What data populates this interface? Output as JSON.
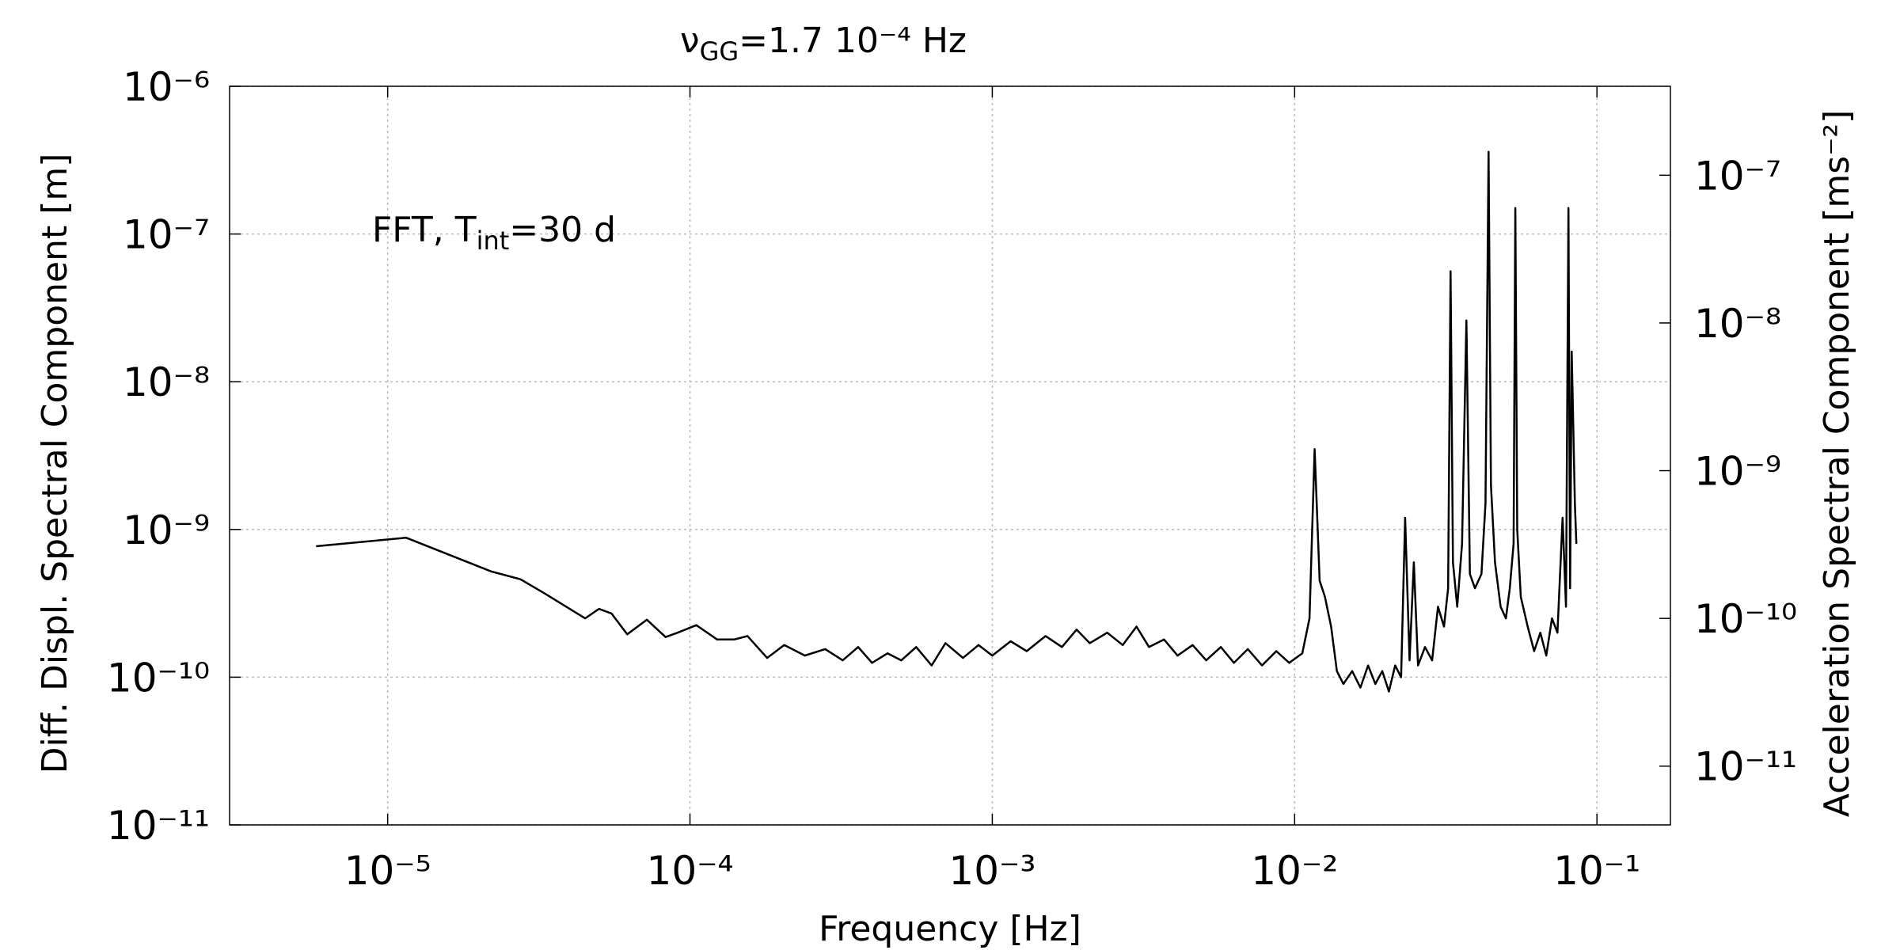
{
  "chart_data": {
    "type": "line",
    "title": [
      "ν",
      "GG",
      "=1.7 10⁻⁴ Hz"
    ],
    "annotation": [
      "FFT, T",
      "int",
      "=30 d"
    ],
    "xlabel": "Frequency [Hz]",
    "ylabel": "Diff. Displ. Spectral Component [m]",
    "y2label": "Acceleration Spectral Component [ms⁻²]",
    "xlog": true,
    "ylog": true,
    "y2log": true,
    "grid": true,
    "color": "#000000",
    "xlim": [
      3e-06,
      0.175
    ],
    "ylim": [
      1e-11,
      1e-06
    ],
    "y2lim": [
      4e-12,
      4e-07
    ],
    "xticks": [
      {
        "value": 1e-05,
        "label": "10⁻⁵"
      },
      {
        "value": 0.0001,
        "label": "10⁻⁴"
      },
      {
        "value": 0.001,
        "label": "10⁻³"
      },
      {
        "value": 0.01,
        "label": "10⁻²"
      },
      {
        "value": 0.1,
        "label": "10⁻¹"
      }
    ],
    "yticks": [
      {
        "value": 1e-11,
        "label": "10⁻¹¹"
      },
      {
        "value": 1e-10,
        "label": "10⁻¹⁰"
      },
      {
        "value": 1e-09,
        "label": "10⁻⁹"
      },
      {
        "value": 1e-08,
        "label": "10⁻⁸"
      },
      {
        "value": 1e-07,
        "label": "10⁻⁷"
      },
      {
        "value": 1e-06,
        "label": "10⁻⁶"
      }
    ],
    "y2ticks": [
      {
        "value": 1e-11,
        "label": "10⁻¹¹"
      },
      {
        "value": 1e-10,
        "label": "10⁻¹⁰"
      },
      {
        "value": 1e-09,
        "label": "10⁻⁹"
      },
      {
        "value": 1e-08,
        "label": "10⁻⁸"
      },
      {
        "value": 1e-07,
        "label": "10⁻⁷"
      }
    ],
    "x": [
      5.8e-06,
      1.15e-05,
      2.2e-05,
      2.75e-05,
      3.3e-05,
      4.5e-05,
      5e-05,
      5.5e-05,
      6.2e-05,
      7.2e-05,
      8.3e-05,
      9.1e-05,
      0.000105,
      0.000123,
      0.00014,
      0.000155,
      0.00018,
      0.000205,
      0.00024,
      0.00028,
      0.00032,
      0.00036,
      0.0004,
      0.00045,
      0.0005,
      0.00056,
      0.00063,
      0.0007,
      0.0008,
      0.0009,
      0.001,
      0.00115,
      0.0013,
      0.0015,
      0.0017,
      0.0019,
      0.0021,
      0.0024,
      0.0027,
      0.003,
      0.0033,
      0.0037,
      0.0041,
      0.0046,
      0.0051,
      0.0057,
      0.0063,
      0.007,
      0.0078,
      0.0087,
      0.0096,
      0.0106,
      0.0112,
      0.01165,
      0.0121,
      0.0126,
      0.0132,
      0.0138,
      0.0145,
      0.0155,
      0.0165,
      0.0175,
      0.0185,
      0.0195,
      0.0205,
      0.0215,
      0.0225,
      0.0232,
      0.024,
      0.0248,
      0.0256,
      0.027,
      0.0285,
      0.0298,
      0.0312,
      0.0322,
      0.0328,
      0.0334,
      0.0345,
      0.0358,
      0.037,
      0.038,
      0.0395,
      0.0415,
      0.0428,
      0.0438,
      0.0446,
      0.046,
      0.048,
      0.05,
      0.0515,
      0.053,
      0.0537,
      0.0545,
      0.056,
      0.059,
      0.062,
      0.065,
      0.068,
      0.071,
      0.074,
      0.077,
      0.079,
      0.0805,
      0.0815,
      0.0825,
      0.0835,
      0.0845,
      0.0855
    ],
    "values": [
      7.7e-10,
      8.8e-10,
      5.2e-10,
      4.6e-10,
      3.7e-10,
      2.5e-10,
      2.9e-10,
      2.7e-10,
      1.95e-10,
      2.45e-10,
      1.87e-10,
      2e-10,
      2.25e-10,
      1.8e-10,
      1.8e-10,
      1.9e-10,
      1.35e-10,
      1.65e-10,
      1.4e-10,
      1.55e-10,
      1.3e-10,
      1.6e-10,
      1.25e-10,
      1.45e-10,
      1.3e-10,
      1.6e-10,
      1.2e-10,
      1.7e-10,
      1.35e-10,
      1.65e-10,
      1.4e-10,
      1.75e-10,
      1.5e-10,
      1.9e-10,
      1.6e-10,
      2.1e-10,
      1.7e-10,
      2e-10,
      1.65e-10,
      2.2e-10,
      1.6e-10,
      1.8e-10,
      1.4e-10,
      1.65e-10,
      1.3e-10,
      1.6e-10,
      1.25e-10,
      1.55e-10,
      1.2e-10,
      1.5e-10,
      1.25e-10,
      1.45e-10,
      2.5e-10,
      3.5e-09,
      4.5e-10,
      3.5e-10,
      2.2e-10,
      1.1e-10,
      9e-11,
      1.1e-10,
      8.5e-11,
      1.2e-10,
      9e-11,
      1.1e-10,
      8e-11,
      1.2e-10,
      1e-10,
      1.2e-09,
      1.3e-10,
      6e-10,
      1.2e-10,
      1.6e-10,
      1.3e-10,
      3e-10,
      2.2e-10,
      4e-10,
      5.6e-08,
      6e-10,
      3e-10,
      8e-10,
      2.6e-08,
      5e-10,
      4e-10,
      5e-10,
      1.5e-09,
      3.6e-07,
      2e-09,
      6e-10,
      3e-10,
      2.5e-10,
      4e-10,
      8e-10,
      1.5e-07,
      1e-09,
      3.5e-10,
      2.2e-10,
      1.5e-10,
      2e-10,
      1.4e-10,
      2.5e-10,
      2e-10,
      1.2e-09,
      3e-10,
      1.5e-07,
      4e-10,
      1.6e-08,
      5e-09,
      1.5e-09,
      8e-10
    ]
  }
}
